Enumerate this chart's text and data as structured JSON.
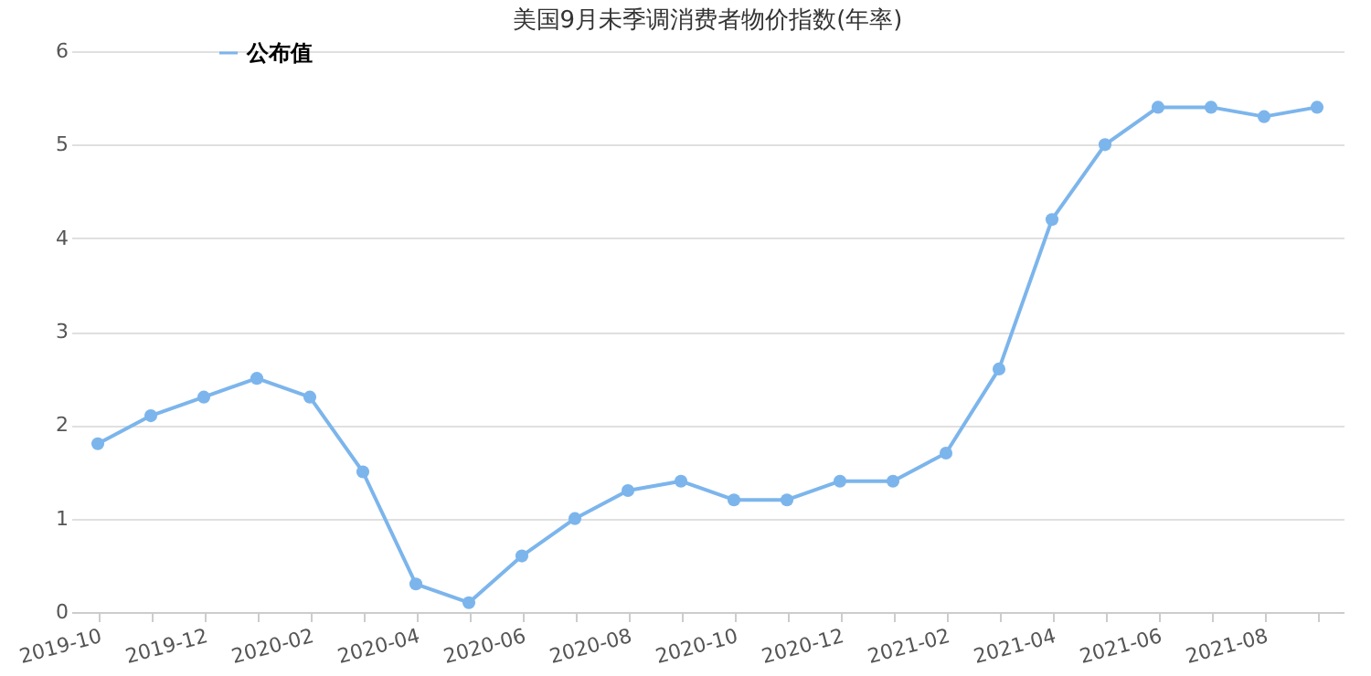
{
  "chart_data": {
    "type": "line",
    "title": "美国9月未季调消费者物价指数(年率)",
    "categories": [
      "2019-10",
      null,
      "2019-12",
      null,
      "2020-02",
      null,
      "2020-04",
      null,
      "2020-06",
      null,
      "2020-08",
      null,
      "2020-10",
      null,
      "2020-12",
      null,
      "2021-02",
      null,
      "2021-04",
      null,
      "2021-06",
      null,
      "2021-08",
      null
    ],
    "series": [
      {
        "name": "公布值",
        "color": "#7cb5ec",
        "values": [
          1.8,
          2.1,
          2.3,
          2.5,
          2.3,
          1.5,
          0.3,
          0.1,
          0.6,
          1.0,
          1.3,
          1.4,
          1.2,
          1.2,
          1.4,
          1.4,
          1.7,
          2.6,
          4.2,
          5.0,
          5.4,
          5.4,
          5.3,
          5.4
        ]
      }
    ],
    "ylim": [
      0,
      6
    ],
    "yticks": [
      0,
      1,
      2,
      3,
      4,
      5,
      6
    ],
    "grid": "y",
    "legend": "top left",
    "marker": "circle",
    "line_style": "solid"
  }
}
